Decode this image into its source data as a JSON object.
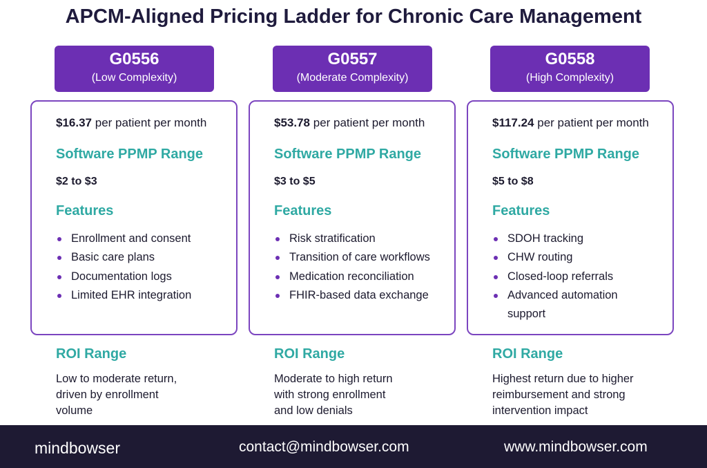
{
  "title": "APCM-Aligned Pricing Ladder for Chronic Care Management",
  "tiers": [
    {
      "code": "G0556",
      "complexity": "(Low Complexity)",
      "price": "$16.37",
      "price_unit": "per patient per month",
      "software_heading": "Software PPMP Range",
      "software_range": "$2 to $3",
      "features_heading": "Features",
      "features": [
        "Enrollment and consent",
        "Basic care plans",
        "Documentation logs",
        "Limited EHR integration"
      ],
      "roi_heading": "ROI Range",
      "roi_lines": [
        "Low to moderate return,",
        "driven by enrollment",
        "volume"
      ]
    },
    {
      "code": "G0557",
      "complexity": "(Moderate Complexity)",
      "price": "$53.78",
      "price_unit": "per patient per month",
      "software_heading": "Software PPMP Range",
      "software_range": "$3 to $5",
      "features_heading": "Features",
      "features": [
        "Risk stratification",
        "Transition of care workflows",
        "Medication reconciliation",
        "FHIR-based data exchange"
      ],
      "roi_heading": "ROI Range",
      "roi_lines": [
        "Moderate to high return",
        "with strong enrollment",
        "and low denials"
      ]
    },
    {
      "code": "G0558",
      "complexity": "(High Complexity)",
      "price": "$117.24",
      "price_unit": "per patient per month",
      "software_heading": "Software PPMP Range",
      "software_range": "$5 to $8",
      "features_heading": "Features",
      "features": [
        "SDOH tracking",
        "CHW routing",
        "Closed-loop referrals",
        "Advanced automation support"
      ],
      "roi_heading": "ROI Range",
      "roi_lines": [
        "Highest return due to higher",
        "reimbursement and strong",
        "intervention impact"
      ]
    }
  ],
  "footer": {
    "logo": "mindbowser",
    "email": "contact@mindbowser.com",
    "website": "www.mindbowser.com"
  }
}
